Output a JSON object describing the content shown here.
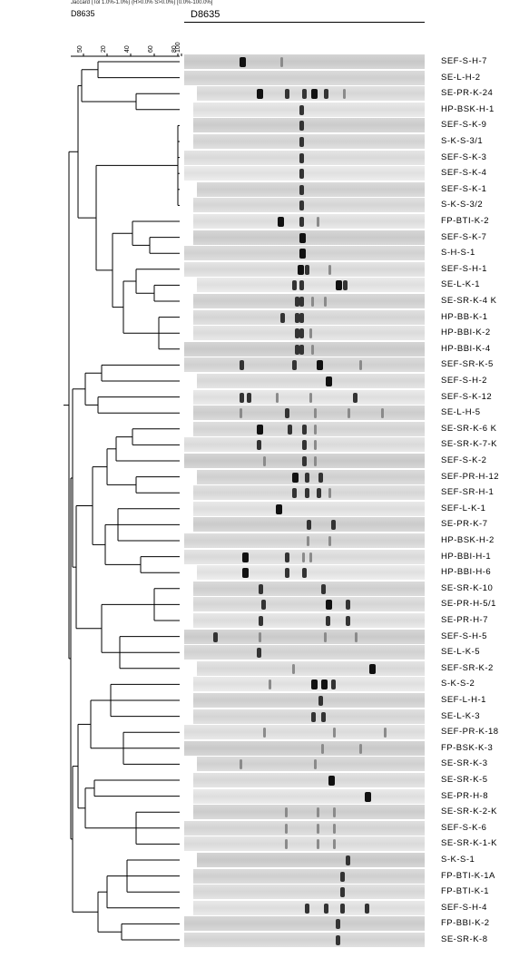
{
  "header": {
    "settings": "Jaccard (Tol 1.0%-1.0%) (H>0.0% S>0.0%) [0.0%-100.0%]",
    "id_left": "D8635",
    "id_right": "D8635"
  },
  "scale": {
    "ticks": [
      "50",
      "20",
      "40",
      "60",
      "80",
      "100"
    ]
  },
  "lanes": [
    {
      "label": "SEF-S-H-7",
      "bands": [
        [
          23,
          3
        ],
        [
          40,
          1
        ]
      ]
    },
    {
      "label": "SE-L-H-2",
      "bands": []
    },
    {
      "label": "SE-PR-K-24",
      "bands": [
        [
          30,
          3
        ],
        [
          42,
          2
        ],
        [
          49,
          2
        ],
        [
          53,
          3
        ],
        [
          58,
          2
        ],
        [
          66,
          1
        ]
      ]
    },
    {
      "label": "HP-BSK-H-1",
      "bands": [
        [
          48,
          2
        ]
      ]
    },
    {
      "label": "SEF-S-K-9",
      "bands": [
        [
          48,
          2
        ]
      ]
    },
    {
      "label": "S-K-S-3/1",
      "bands": [
        [
          48,
          2
        ]
      ]
    },
    {
      "label": "SEF-S-K-3",
      "bands": [
        [
          48,
          2
        ]
      ]
    },
    {
      "label": "SEF-S-K-4",
      "bands": [
        [
          48,
          2
        ]
      ]
    },
    {
      "label": "SEF-S-K-1",
      "bands": [
        [
          48,
          2
        ]
      ]
    },
    {
      "label": "S-K-S-3/2",
      "bands": [
        [
          48,
          2
        ]
      ]
    },
    {
      "label": "FP-BTI-K-2",
      "bands": [
        [
          39,
          3
        ],
        [
          48,
          2
        ],
        [
          55,
          1
        ]
      ]
    },
    {
      "label": "SEF-S-K-7",
      "bands": [
        [
          48,
          3
        ]
      ]
    },
    {
      "label": "S-H-S-1",
      "bands": [
        [
          48,
          3
        ]
      ]
    },
    {
      "label": "SEF-S-H-1",
      "bands": [
        [
          47,
          3
        ],
        [
          50,
          2
        ],
        [
          60,
          1
        ]
      ]
    },
    {
      "label": "SE-L-K-1",
      "bands": [
        [
          45,
          2
        ],
        [
          48,
          2
        ],
        [
          63,
          3
        ],
        [
          66,
          2
        ]
      ]
    },
    {
      "label": "SE-SR-K-4 K",
      "bands": [
        [
          46,
          2
        ],
        [
          48,
          2
        ],
        [
          53,
          1
        ],
        [
          58,
          1
        ]
      ]
    },
    {
      "label": "HP-BB-K-1",
      "bands": [
        [
          40,
          2
        ],
        [
          46,
          2
        ],
        [
          48,
          2
        ]
      ]
    },
    {
      "label": "HP-BBI-K-2",
      "bands": [
        [
          46,
          2
        ],
        [
          48,
          2
        ],
        [
          52,
          1
        ]
      ]
    },
    {
      "label": "HP-BBI-K-4",
      "bands": [
        [
          46,
          2
        ],
        [
          48,
          2
        ],
        [
          53,
          1
        ]
      ]
    },
    {
      "label": "SEF-SR-K-5",
      "bands": [
        [
          23,
          2
        ],
        [
          45,
          2
        ],
        [
          55,
          3
        ],
        [
          73,
          1
        ]
      ]
    },
    {
      "label": "SEF-S-H-2",
      "bands": [
        [
          59,
          3
        ]
      ]
    },
    {
      "label": "SEF-S-K-12",
      "bands": [
        [
          23,
          2
        ],
        [
          26,
          2
        ],
        [
          38,
          1
        ],
        [
          52,
          1
        ],
        [
          70,
          2
        ]
      ]
    },
    {
      "label": "SE-L-H-5",
      "bands": [
        [
          23,
          1
        ],
        [
          42,
          2
        ],
        [
          54,
          1
        ],
        [
          68,
          1
        ],
        [
          82,
          1
        ]
      ]
    },
    {
      "label": "SE-SR-K-6 K",
      "bands": [
        [
          30,
          3
        ],
        [
          43,
          2
        ],
        [
          49,
          2
        ],
        [
          54,
          1
        ]
      ]
    },
    {
      "label": "SE-SR-K-7-K",
      "bands": [
        [
          30,
          2
        ],
        [
          49,
          2
        ],
        [
          54,
          1
        ]
      ]
    },
    {
      "label": "SEF-S-K-2",
      "bands": [
        [
          33,
          1
        ],
        [
          49,
          2
        ],
        [
          54,
          1
        ]
      ]
    },
    {
      "label": "SEF-PR-H-12",
      "bands": [
        [
          45,
          3
        ],
        [
          50,
          2
        ],
        [
          56,
          2
        ]
      ]
    },
    {
      "label": "SEF-SR-H-1",
      "bands": [
        [
          45,
          2
        ],
        [
          50,
          2
        ],
        [
          55,
          2
        ],
        [
          60,
          1
        ]
      ]
    },
    {
      "label": "SEF-L-K-1",
      "bands": [
        [
          38,
          3
        ]
      ]
    },
    {
      "label": "SE-PR-K-7",
      "bands": [
        [
          51,
          2
        ],
        [
          61,
          2
        ]
      ]
    },
    {
      "label": "HP-BSK-H-2",
      "bands": [
        [
          51,
          1
        ],
        [
          60,
          1
        ]
      ]
    },
    {
      "label": "HP-BBI-H-1",
      "bands": [
        [
          24,
          3
        ],
        [
          42,
          2
        ],
        [
          49,
          1
        ],
        [
          52,
          1
        ]
      ]
    },
    {
      "label": "HP-BBI-H-6",
      "bands": [
        [
          24,
          3
        ],
        [
          42,
          2
        ],
        [
          49,
          2
        ]
      ]
    },
    {
      "label": "SE-SR-K-10",
      "bands": [
        [
          31,
          2
        ],
        [
          57,
          2
        ]
      ]
    },
    {
      "label": "SE-PR-H-5/1",
      "bands": [
        [
          32,
          2
        ],
        [
          59,
          3
        ],
        [
          67,
          2
        ]
      ]
    },
    {
      "label": "SE-PR-H-7",
      "bands": [
        [
          31,
          2
        ],
        [
          59,
          2
        ],
        [
          67,
          2
        ]
      ]
    },
    {
      "label": "SEF-S-H-5",
      "bands": [
        [
          12,
          2
        ],
        [
          31,
          1
        ],
        [
          58,
          1
        ],
        [
          71,
          1
        ]
      ]
    },
    {
      "label": "SE-L-K-5",
      "bands": [
        [
          30,
          2
        ]
      ]
    },
    {
      "label": "SEF-SR-K-2",
      "bands": [
        [
          45,
          1
        ],
        [
          77,
          3
        ]
      ]
    },
    {
      "label": "S-K-S-2",
      "bands": [
        [
          35,
          1
        ],
        [
          53,
          3
        ],
        [
          57,
          3
        ],
        [
          61,
          2
        ]
      ]
    },
    {
      "label": "SEF-L-H-1",
      "bands": [
        [
          56,
          2
        ]
      ]
    },
    {
      "label": "SE-L-K-3",
      "bands": [
        [
          53,
          2
        ],
        [
          57,
          2
        ]
      ]
    },
    {
      "label": "SEF-PR-K-18",
      "bands": [
        [
          33,
          1
        ],
        [
          62,
          1
        ],
        [
          83,
          1
        ]
      ]
    },
    {
      "label": "FP-BSK-K-3",
      "bands": [
        [
          57,
          1
        ],
        [
          73,
          1
        ]
      ]
    },
    {
      "label": "SE-SR-K-3",
      "bands": [
        [
          23,
          1
        ],
        [
          54,
          1
        ]
      ]
    },
    {
      "label": "SE-SR-K-5",
      "bands": [
        [
          60,
          3
        ]
      ]
    },
    {
      "label": "SE-PR-H-8",
      "bands": [
        [
          75,
          3
        ]
      ]
    },
    {
      "label": "SE-SR-K-2-K",
      "bands": [
        [
          42,
          1
        ],
        [
          55,
          1
        ],
        [
          62,
          1
        ]
      ]
    },
    {
      "label": "SEF-S-K-6",
      "bands": [
        [
          42,
          1
        ],
        [
          55,
          1
        ],
        [
          62,
          1
        ]
      ]
    },
    {
      "label": "SE-SR-K-1-K",
      "bands": [
        [
          42,
          1
        ],
        [
          55,
          1
        ],
        [
          62,
          1
        ]
      ]
    },
    {
      "label": "S-K-S-1",
      "bands": [
        [
          67,
          2
        ]
      ]
    },
    {
      "label": "FP-BTI-K-1A",
      "bands": [
        [
          65,
          2
        ]
      ]
    },
    {
      "label": "FP-BTI-K-1",
      "bands": [
        [
          65,
          2
        ]
      ]
    },
    {
      "label": "SEF-S-H-4",
      "bands": [
        [
          50,
          2
        ],
        [
          58,
          2
        ],
        [
          65,
          2
        ],
        [
          75,
          2
        ]
      ]
    },
    {
      "label": "FP-BBI-K-2",
      "bands": [
        [
          63,
          2
        ]
      ]
    },
    {
      "label": "SE-SR-K-8",
      "bands": [
        [
          63,
          2
        ]
      ]
    }
  ]
}
